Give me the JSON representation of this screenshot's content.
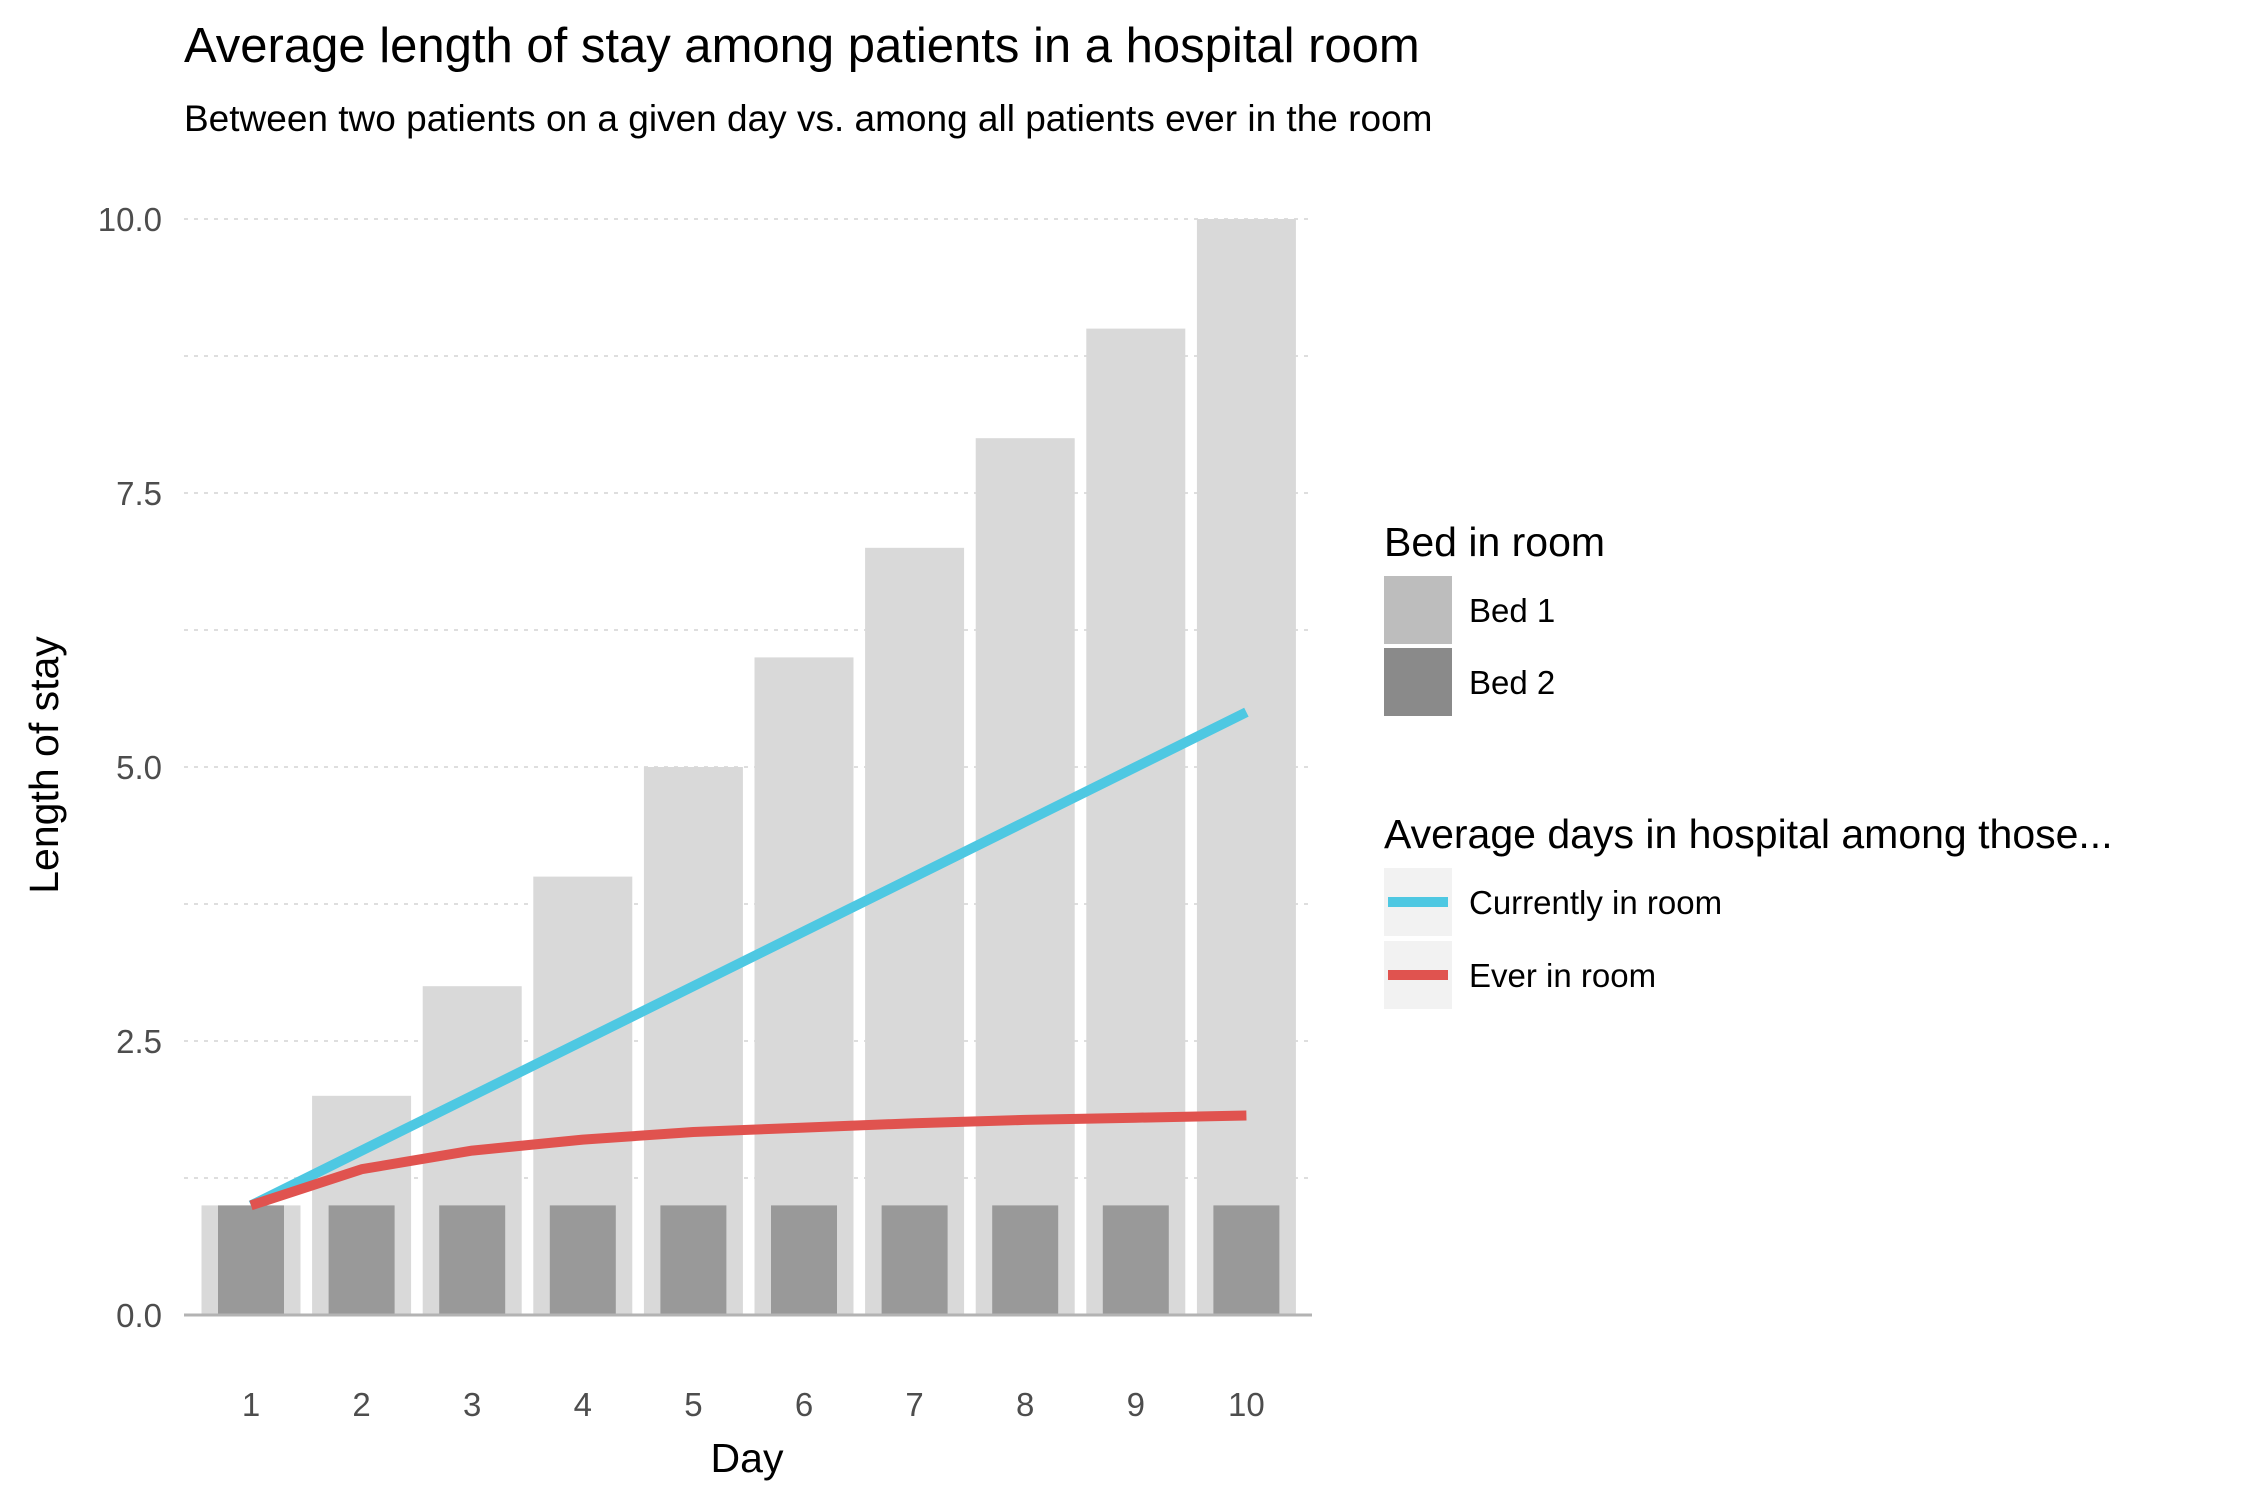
{
  "chart_data": {
    "type": "bar",
    "title": "Average length of stay among patients in a hospital room",
    "subtitle": "Between two patients on a given day vs. among all patients ever in the room",
    "xlabel": "Day",
    "ylabel": "Length of stay",
    "categories": [
      "1",
      "2",
      "3",
      "4",
      "5",
      "6",
      "7",
      "8",
      "9",
      "10"
    ],
    "ylim": [
      0,
      10
    ],
    "yticks": [
      "0.0",
      "2.5",
      "5.0",
      "7.5",
      "10.0"
    ],
    "grid": true,
    "legend_position": "right",
    "bar_series": [
      {
        "name": "Bed 1",
        "color": "#d9d9d9",
        "values": [
          1,
          2,
          3,
          4,
          5,
          6,
          7,
          8,
          9,
          10
        ]
      },
      {
        "name": "Bed 2",
        "color": "#999999",
        "values": [
          1,
          1,
          1,
          1,
          1,
          1,
          1,
          1,
          1,
          1
        ]
      }
    ],
    "line_series": [
      {
        "name": "Currently in room",
        "color": "#4ec8e2",
        "values": [
          1.0,
          1.5,
          2.0,
          2.5,
          3.0,
          3.5,
          4.0,
          4.5,
          5.0,
          5.5
        ]
      },
      {
        "name": "Ever in room",
        "color": "#e0534f",
        "values": [
          1.0,
          1.33,
          1.5,
          1.6,
          1.67,
          1.71,
          1.75,
          1.78,
          1.8,
          1.82
        ]
      }
    ],
    "legend": {
      "bed_title": "Bed in room",
      "bed_items": [
        {
          "label": "Bed 1",
          "color": "#bdbdbd"
        },
        {
          "label": "Bed 2",
          "color": "#8a8a8a"
        }
      ],
      "line_title": "Average days in hospital among those...",
      "line_items": [
        {
          "label": "Currently in room",
          "color": "#4ec8e2"
        },
        {
          "label": "Ever in room",
          "color": "#e0534f"
        }
      ]
    }
  }
}
